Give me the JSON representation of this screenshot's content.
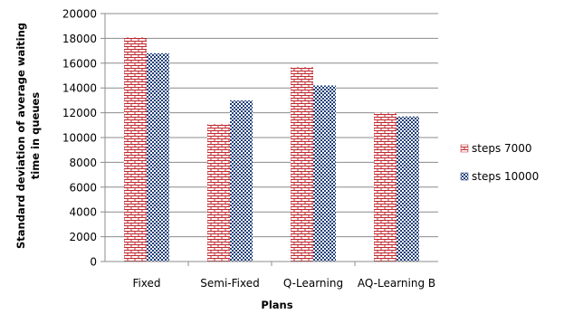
{
  "chart_data": {
    "type": "bar",
    "title": "",
    "xlabel": "Plans",
    "ylabel": "Standard deviation of average waiting time in queues",
    "ylabel_lines": [
      "Standard deviation of average waiting",
      "time in queues"
    ],
    "categories": [
      "Fixed",
      "Semi-Fixed",
      "Q-Learning",
      "AQ-Learning B"
    ],
    "ylim": [
      0,
      20000
    ],
    "yticks": [
      0,
      2000,
      4000,
      6000,
      8000,
      10000,
      12000,
      14000,
      16000,
      18000,
      20000
    ],
    "grid": true,
    "legend_position": "right",
    "series": [
      {
        "name": "steps 7000",
        "values": [
          18100,
          11100,
          15700,
          12000
        ],
        "color": "#c0272d",
        "pattern": "brick"
      },
      {
        "name": "steps 10000",
        "values": [
          16800,
          13000,
          14200,
          11700
        ],
        "color": "#1f3f7a",
        "pattern": "checker"
      }
    ]
  }
}
